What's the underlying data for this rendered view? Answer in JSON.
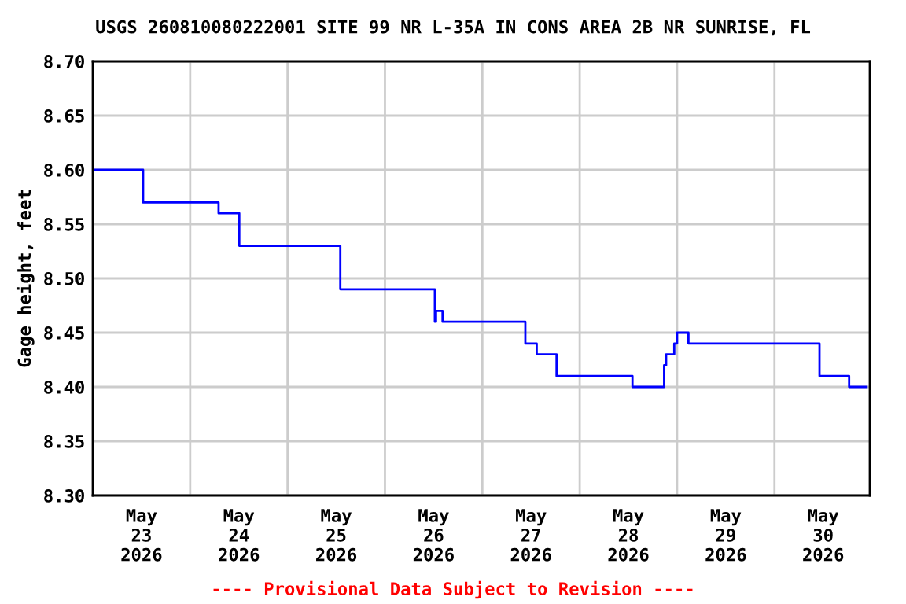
{
  "chart_data": {
    "type": "step",
    "title": "USGS 260810080222001 SITE 99 NR L-35A IN CONS AREA 2B NR SUNRISE, FL",
    "ylabel": "Gage height, feet",
    "annotations": [
      "---- Provisional Data Subject to Revision ----"
    ],
    "series": [
      {
        "color": "#0000ff",
        "x": [
          "2026-05-23T00:00",
          "2026-05-23T12:24",
          "2026-05-24T07:00",
          "2026-05-24T12:06",
          "2026-05-25T13:00",
          "2026-05-26T12:18",
          "2026-05-26T12:35",
          "2026-05-26T14:12",
          "2026-05-27T10:36",
          "2026-05-27T13:24",
          "2026-05-27T18:18",
          "2026-05-28T13:00",
          "2026-05-28T20:48",
          "2026-05-28T21:18",
          "2026-05-28T23:18",
          "2026-05-29T00:00",
          "2026-05-29T02:48",
          "2026-05-30T11:06",
          "2026-05-30T18:24",
          "2026-05-30T22:42"
        ],
        "values": [
          8.6,
          8.57,
          8.56,
          8.53,
          8.49,
          8.46,
          8.47,
          8.46,
          8.44,
          8.43,
          8.41,
          8.4,
          8.42,
          8.43,
          8.44,
          8.45,
          8.44,
          8.41,
          8.4,
          8.4
        ]
      }
    ],
    "xlim": [
      "2026-05-23T00:00",
      "2026-05-30T23:30"
    ],
    "xticks": [
      {
        "value": "2026-05-23T12:00",
        "label": "May\n23\n2026"
      },
      {
        "value": "2026-05-24T12:00",
        "label": "May\n24\n2026"
      },
      {
        "value": "2026-05-25T12:00",
        "label": "May\n25\n2026"
      },
      {
        "value": "2026-05-26T12:00",
        "label": "May\n26\n2026"
      },
      {
        "value": "2026-05-27T12:00",
        "label": "May\n27\n2026"
      },
      {
        "value": "2026-05-28T12:00",
        "label": "May\n28\n2026"
      },
      {
        "value": "2026-05-29T12:00",
        "label": "May\n29\n2026"
      },
      {
        "value": "2026-05-30T12:00",
        "label": "May\n30\n2026"
      },
      {
        "value": "2026-05-24T00:00",
        "label": null
      },
      {
        "value": "2026-05-25T00:00",
        "label": null
      },
      {
        "value": "2026-05-26T00:00",
        "label": null
      },
      {
        "value": "2026-05-27T00:00",
        "label": null
      },
      {
        "value": "2026-05-28T00:00",
        "label": null
      },
      {
        "value": "2026-05-29T00:00",
        "label": null
      },
      {
        "value": "2026-05-30T00:00",
        "label": null
      }
    ],
    "ylim": [
      8.3,
      8.7
    ],
    "yticks": [
      {
        "value": 8.3,
        "label": "8.30"
      },
      {
        "value": 8.35,
        "label": "8.35"
      },
      {
        "value": 8.4,
        "label": "8.40"
      },
      {
        "value": 8.45,
        "label": "8.45"
      },
      {
        "value": 8.5,
        "label": "8.50"
      },
      {
        "value": 8.55,
        "label": "8.55"
      },
      {
        "value": 8.6,
        "label": "8.60"
      },
      {
        "value": 8.65,
        "label": "8.65"
      },
      {
        "value": 8.7,
        "label": "8.70"
      }
    ],
    "grid": true
  }
}
